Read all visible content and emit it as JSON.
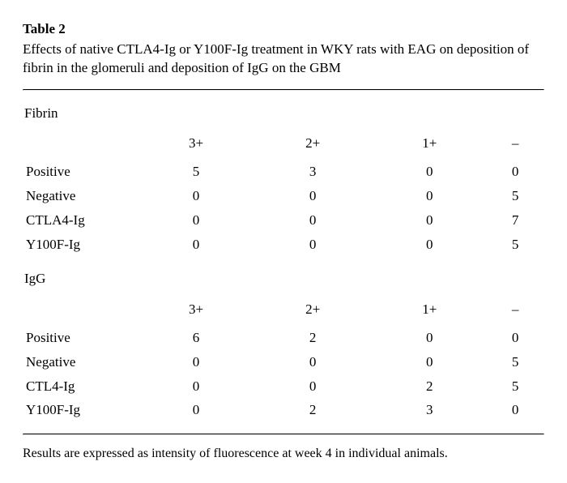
{
  "header": {
    "label": "Table 2",
    "caption": "Effects of native CTLA4-Ig or Y100F-Ig treatment in WKY rats with EAG on deposition of fibrin in the glomeruli and deposition of IgG on the GBM"
  },
  "columns": [
    "3+",
    "2+",
    "1+",
    "–"
  ],
  "sections": [
    {
      "title": "Fibrin",
      "rows": [
        {
          "label": "Positive",
          "values": [
            "5",
            "3",
            "0",
            "0"
          ]
        },
        {
          "label": "Negative",
          "values": [
            "0",
            "0",
            "0",
            "5"
          ]
        },
        {
          "label": "CTLA4-Ig",
          "values": [
            "0",
            "0",
            "0",
            "7"
          ]
        },
        {
          "label": "Y100F-Ig",
          "values": [
            "0",
            "0",
            "0",
            "5"
          ]
        }
      ]
    },
    {
      "title": "IgG",
      "rows": [
        {
          "label": "Positive",
          "values": [
            "6",
            "2",
            "0",
            "0"
          ]
        },
        {
          "label": "Negative",
          "values": [
            "0",
            "0",
            "0",
            "5"
          ]
        },
        {
          "label": "CTL4-Ig",
          "values": [
            "0",
            "0",
            "2",
            "5"
          ]
        },
        {
          "label": "Y100F-Ig",
          "values": [
            "0",
            "2",
            "3",
            "0"
          ]
        }
      ]
    }
  ],
  "footnote": "Results are expressed as intensity of fluorescence at week 4 in individual animals."
}
